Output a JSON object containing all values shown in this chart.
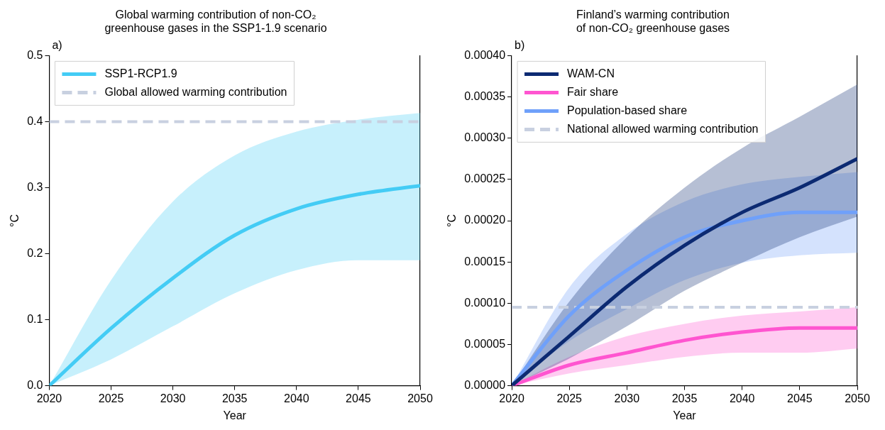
{
  "chart_data": [
    {
      "type": "line",
      "title": "Global warming contribution of non-CO₂\ngreenhouse gases in the SSP1-1.9 scenario",
      "annotations": [
        "a)"
      ],
      "xlabel": "Year",
      "ylabel": "°C",
      "x": [
        2020,
        2025,
        2030,
        2035,
        2040,
        2045,
        2050
      ],
      "series": [
        {
          "name": "SSP1-RCP1.9",
          "color": "#44ccf5",
          "values": [
            0,
            0.087,
            0.163,
            0.228,
            0.268,
            0.29,
            0.303
          ],
          "lower": [
            0,
            0.04,
            0.09,
            0.14,
            0.175,
            0.19,
            0.19
          ],
          "upper": [
            0,
            0.16,
            0.279,
            0.349,
            0.385,
            0.403,
            0.413
          ]
        }
      ],
      "ref_lines": [
        {
          "axis": "y",
          "value": 0.4,
          "label": "Global allowed warming contribution",
          "color": "#c8d0e0",
          "line_style": "dashed"
        }
      ],
      "xlim": [
        2020,
        2050
      ],
      "xticks": [
        2020,
        2025,
        2030,
        2035,
        2040,
        2045,
        2050
      ],
      "ylim": [
        0,
        0.5
      ],
      "yticks": [
        {
          "value": 0,
          "label": "0.0"
        },
        0.1,
        0.2,
        0.3,
        0.4,
        0.5
      ],
      "legend": "top left",
      "grid": false
    },
    {
      "type": "line",
      "title": "Finland’s warming contribution\nof non-CO₂ greenhouse gases",
      "annotations": [
        "b)"
      ],
      "xlabel": "Year",
      "ylabel": "°C",
      "x": [
        2020,
        2025,
        2030,
        2035,
        2040,
        2045,
        2050
      ],
      "series": [
        {
          "name": "WAM-CN",
          "color": "#0c2a72",
          "values": [
            0,
            6e-05,
            0.00012,
            0.00017,
            0.00021,
            0.00024,
            0.000275
          ],
          "lower": [
            0,
            3.3e-05,
            7.2e-05,
            0.000115,
            0.000149,
            0.00018,
            0.000205
          ],
          "upper": [
            0,
            0.000102,
            0.00018,
            0.00024,
            0.000288,
            0.000326,
            0.000365
          ]
        },
        {
          "name": "Fair share",
          "color": "#ff55d0",
          "values": [
            0,
            2.5e-05,
            4e-05,
            5.5e-05,
            6.5e-05,
            7e-05,
            7e-05
          ],
          "lower": [
            0,
            1.5e-05,
            2.5e-05,
            3.5e-05,
            4e-05,
            4e-05,
            4.5e-05
          ],
          "upper": [
            0,
            3.5e-05,
            6e-05,
            7.5e-05,
            8.5e-05,
            9e-05,
            9.5e-05
          ]
        },
        {
          "name": "Population-based share",
          "color": "#6fa0fa",
          "values": [
            0,
            8.5e-05,
            0.00014,
            0.00018,
            0.0002,
            0.00021,
            0.00021
          ],
          "lower": [
            0,
            5.4e-05,
            9.3e-05,
            0.000128,
            0.000149,
            0.000158,
            0.000161
          ],
          "upper": [
            0,
            0.000119,
            0.000184,
            0.000223,
            0.000244,
            0.000253,
            0.000259
          ]
        }
      ],
      "ref_lines": [
        {
          "axis": "y",
          "value": 9.5e-05,
          "label": "National allowed warming contribution",
          "color": "#c8d0e0",
          "line_style": "dashed"
        }
      ],
      "xlim": [
        2020,
        2050
      ],
      "xticks": [
        2020,
        2025,
        2030,
        2035,
        2040,
        2045,
        2050
      ],
      "ylim": [
        0,
        0.0004
      ],
      "yticks": [
        {
          "value": 0,
          "label": "0.00000"
        },
        {
          "value": 5e-05,
          "label": "0.00005"
        },
        {
          "value": 0.0001,
          "label": "0.00010"
        },
        {
          "value": 0.00015,
          "label": "0.00015"
        },
        {
          "value": 0.0002,
          "label": "0.00020"
        },
        {
          "value": 0.00025,
          "label": "0.00025"
        },
        {
          "value": 0.0003,
          "label": "0.00030"
        },
        {
          "value": 0.00035,
          "label": "0.00035"
        },
        {
          "value": 0.0004,
          "label": "0.00040"
        }
      ],
      "legend": "top left",
      "grid": false
    }
  ]
}
